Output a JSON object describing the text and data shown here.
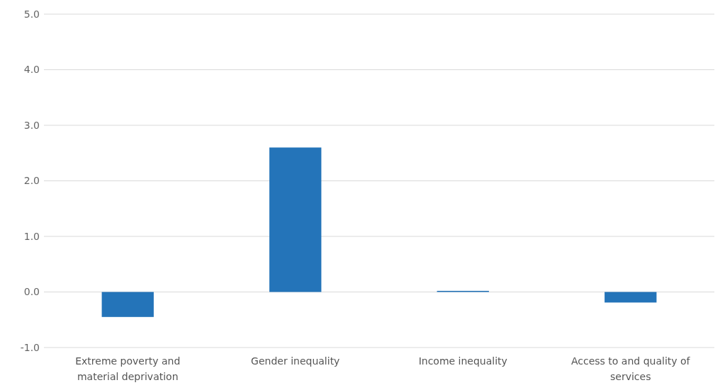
{
  "chart_data": {
    "type": "bar",
    "categories": [
      "Extreme poverty and material deprivation",
      "Gender inequality",
      "Income inequality",
      "Access to and quality of services"
    ],
    "values": [
      -0.45,
      2.6,
      0.02,
      -0.19
    ],
    "color": "#2474b9",
    "ylim": [
      -1,
      5
    ],
    "yticks": [
      {
        "value": -1,
        "label": "-1.0"
      },
      {
        "value": 0,
        "label": "0.0"
      },
      {
        "value": 1,
        "label": "1.0"
      },
      {
        "value": 2,
        "label": "2.0"
      },
      {
        "value": 3,
        "label": "3.0"
      },
      {
        "value": 4,
        "label": "4.0"
      },
      {
        "value": 5,
        "label": "5.0"
      }
    ],
    "grid": "y"
  }
}
